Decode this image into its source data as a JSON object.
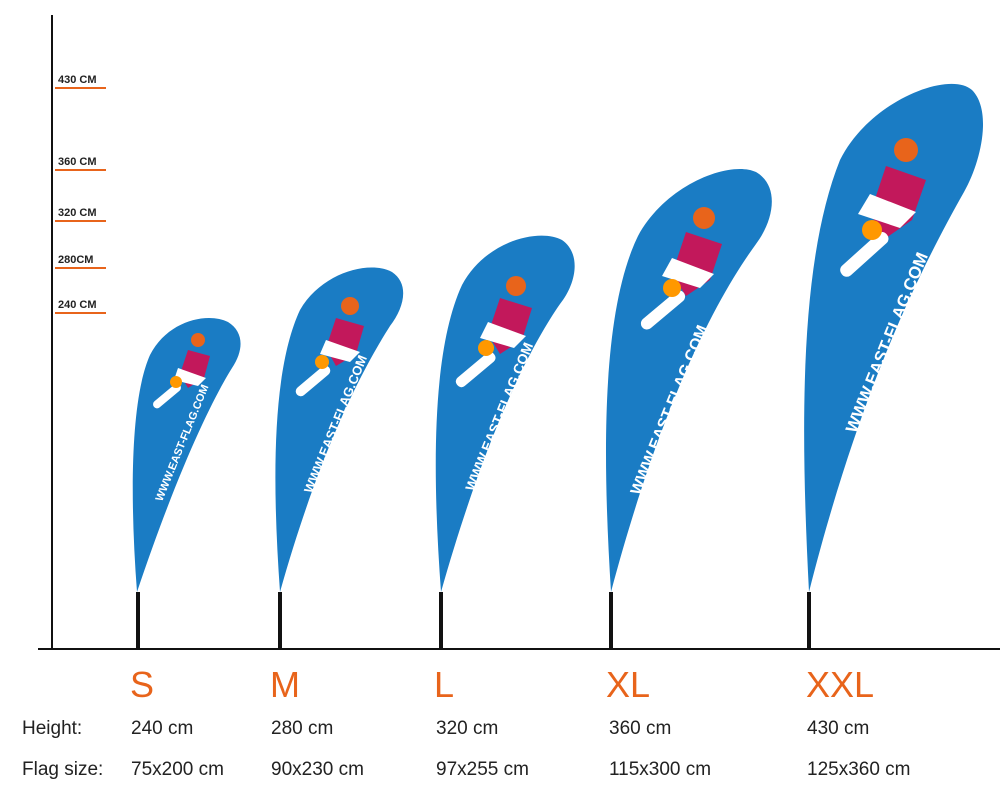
{
  "scale_marks": [
    "430 CM",
    "360 CM",
    "320 CM",
    "280CM",
    "240 CM"
  ],
  "flag_text": "WWW.EAST-FLAG.COM",
  "row_labels": {
    "height": "Height:",
    "flag_size": "Flag size:"
  },
  "sizes": [
    {
      "letter": "S",
      "height": "240 cm",
      "flag_size": "75x200 cm"
    },
    {
      "letter": "M",
      "height": "280 cm",
      "flag_size": "90x230 cm"
    },
    {
      "letter": "L",
      "height": "320 cm",
      "flag_size": "97x255 cm"
    },
    {
      "letter": "XL",
      "height": "360 cm",
      "flag_size": "115x300 cm"
    },
    {
      "letter": "XXL",
      "height": "430 cm",
      "flag_size": "125x360 cm"
    }
  ],
  "colors": {
    "flag": "#1a7cc4",
    "accent": "#e8641b",
    "axis": "#111111"
  }
}
